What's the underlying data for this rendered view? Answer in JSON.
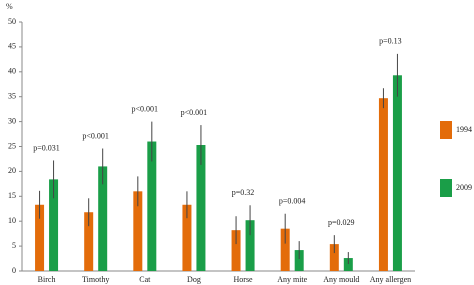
{
  "chart_data": {
    "type": "bar",
    "y_label": "%",
    "categories": [
      "Birch",
      "Timothy",
      "Cat",
      "Dog",
      "Horse",
      "Any mite",
      "Any mould",
      "Any allergen"
    ],
    "series": [
      {
        "name": "1994",
        "color": "#e36c0a",
        "values": [
          13.3,
          11.8,
          16,
          13.3,
          8.2,
          8.5,
          5.4,
          34.7
        ],
        "errors": [
          2.8,
          2.8,
          3,
          2.7,
          2.8,
          3,
          1.8,
          2
        ]
      },
      {
        "name": "2009",
        "color": "#1a9e48",
        "values": [
          18.4,
          21,
          26,
          25.3,
          10.2,
          4.2,
          2.6,
          39.3
        ],
        "errors": [
          3.8,
          3.6,
          4,
          4,
          3,
          1.8,
          1.2,
          4.3
        ]
      }
    ],
    "annotations": [
      "p=0.031",
      "p<0.001",
      "p<0.001",
      "p<0.001",
      "p=0.32",
      "p=0.004",
      "p=0.029",
      "p=0.13"
    ],
    "ylim": [
      0,
      50
    ],
    "yticks": [
      0,
      5,
      10,
      15,
      20,
      25,
      30,
      35,
      40,
      45,
      50
    ]
  }
}
